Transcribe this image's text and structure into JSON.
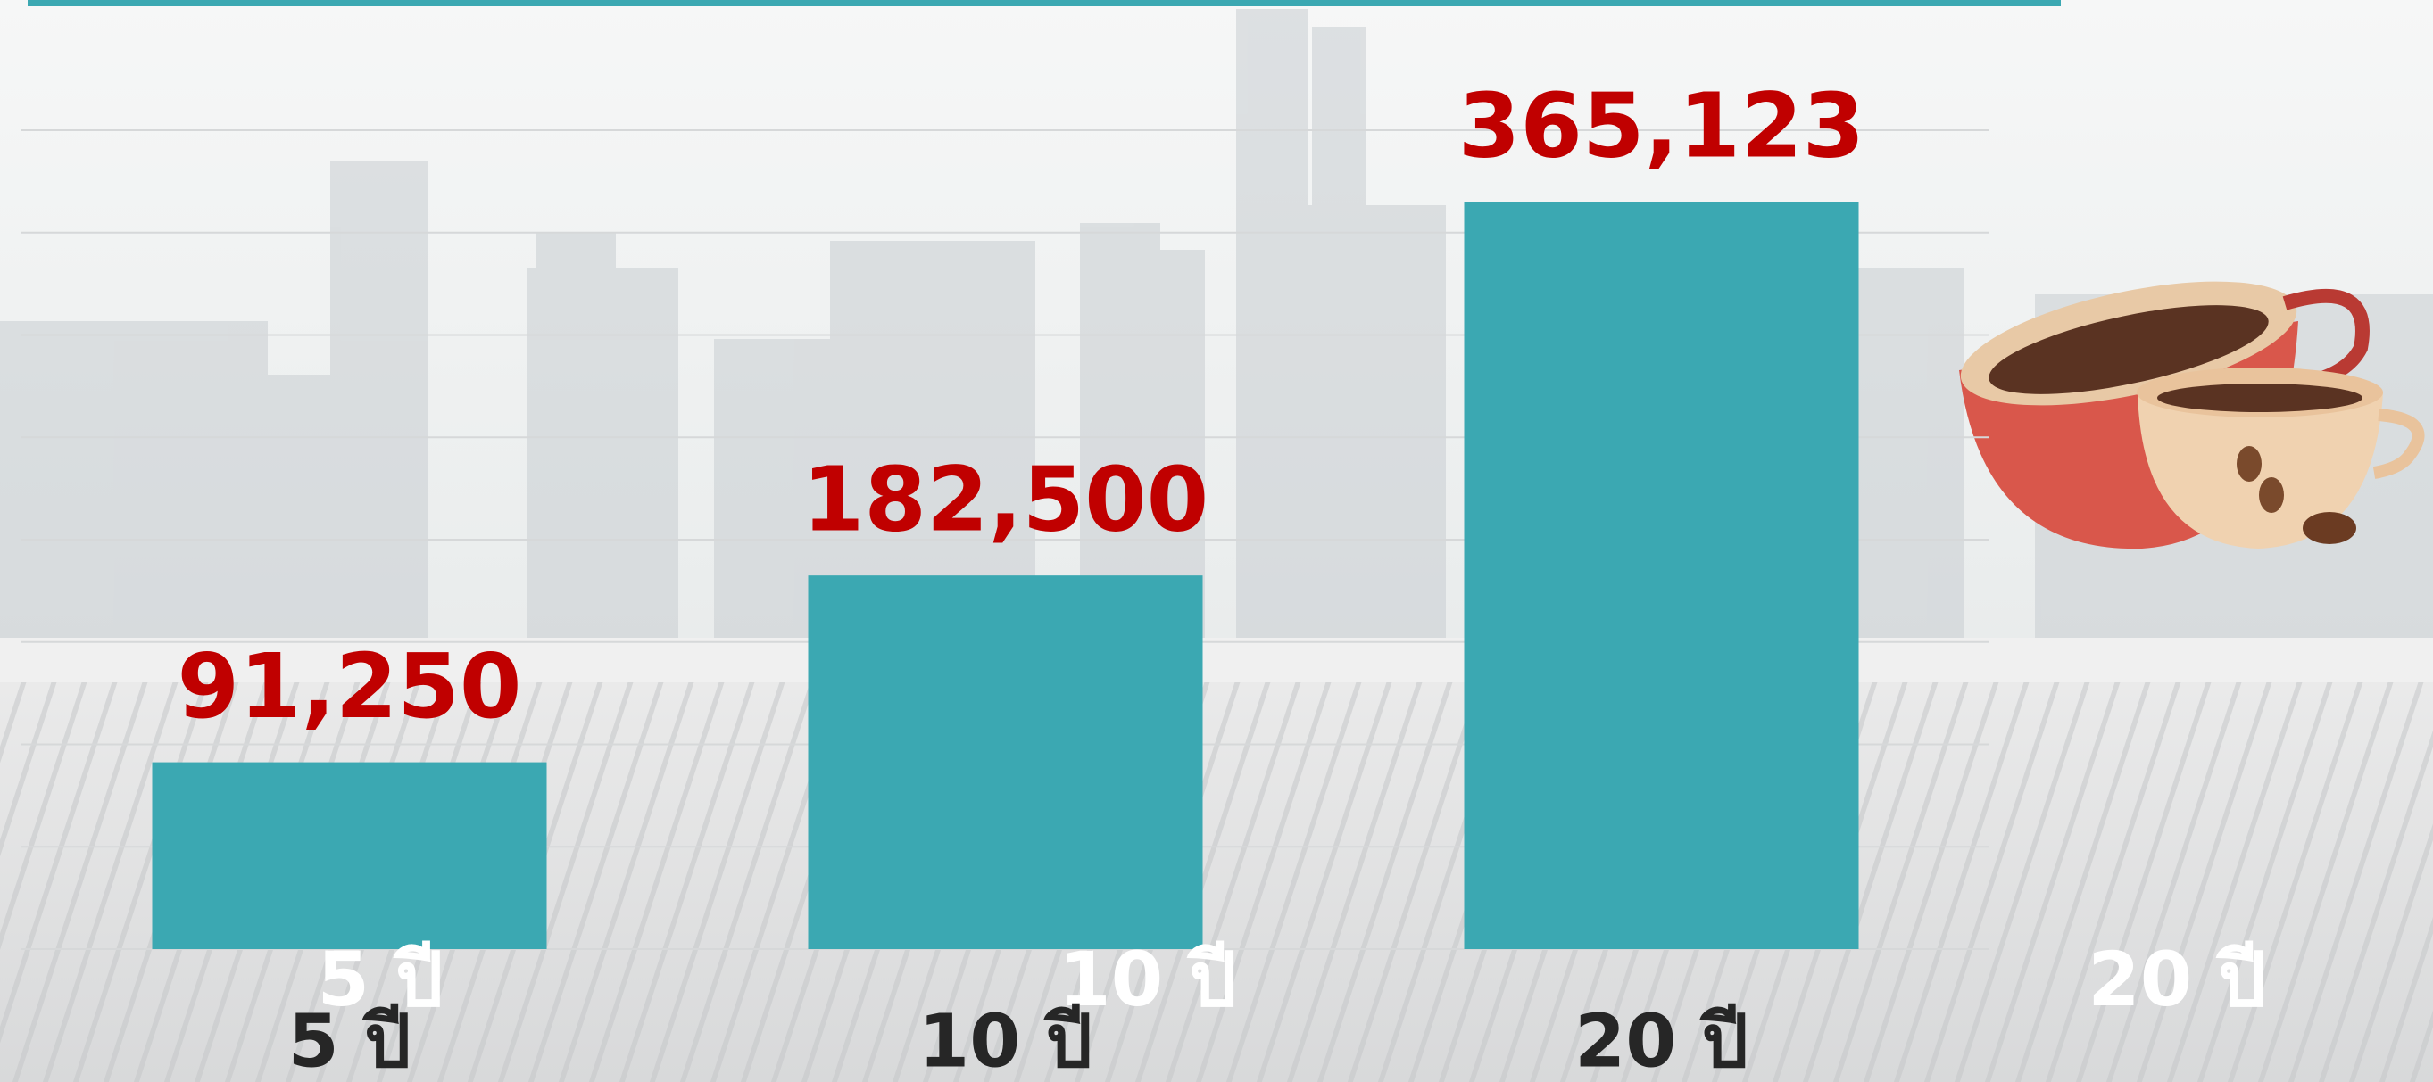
{
  "chart_data": {
    "type": "bar",
    "categories": [
      "5 ปี",
      "10 ปี",
      "20 ปี"
    ],
    "values": [
      91250,
      182500,
      365123
    ],
    "value_labels": [
      "91,250",
      "182,500",
      "365,123"
    ],
    "overlay_labels": [
      "5 ปี",
      "10 ปี",
      "20 ปี"
    ],
    "color": "#3ba8b2",
    "value_label_color": "#c00000",
    "ylim": [
      0,
      400000
    ],
    "yticks": [
      0,
      50000,
      100000,
      150000,
      200000,
      250000,
      300000,
      350000,
      400000
    ],
    "grid": true
  }
}
